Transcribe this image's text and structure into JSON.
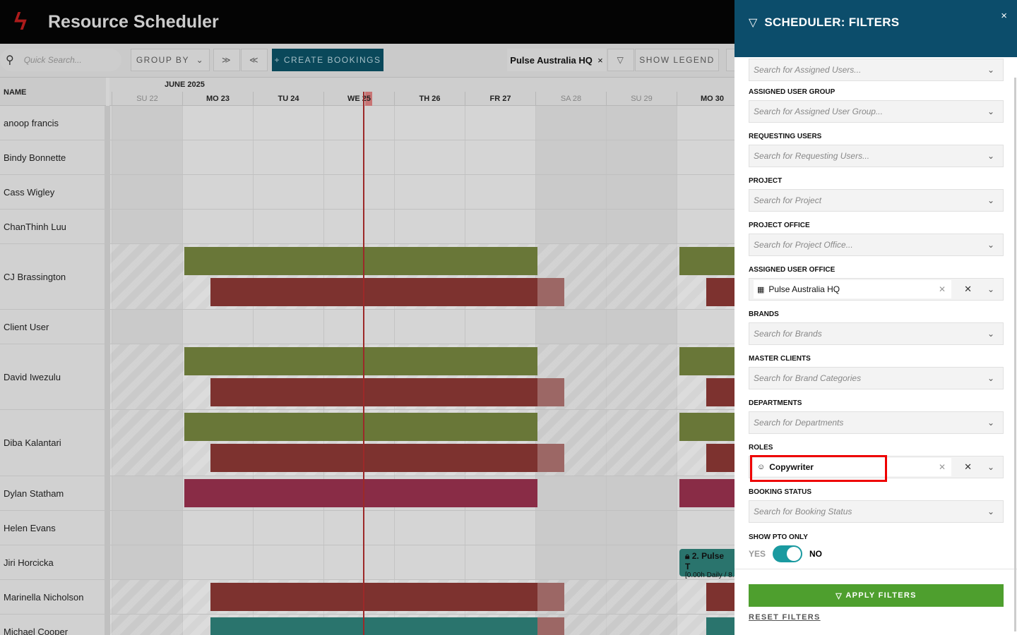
{
  "app": {
    "title": "Resource Scheduler",
    "logo_icon": "lightning-bolt-logo"
  },
  "toolbar": {
    "search_placeholder": "Quick Search...",
    "group_by": "GROUP BY",
    "expand_all": "⌄⌄",
    "collapse_all": "⌃⌃",
    "create_bookings": "+ CREATE BOOKINGS",
    "office_chip": "Pulse Australia HQ",
    "chip_close": "×",
    "filter_icon": "▽",
    "show_legend": "SHOW LEGEND"
  },
  "grid": {
    "name_header": "NAME",
    "month": "JUNE 2025",
    "today_day": "WE 25",
    "days": [
      {
        "label": "SU 22",
        "weekend": true
      },
      {
        "label": "MO 23",
        "weekend": false
      },
      {
        "label": "TU 24",
        "weekend": false
      },
      {
        "label": "WE 25",
        "weekend": false
      },
      {
        "label": "TH 26",
        "weekend": false
      },
      {
        "label": "FR 27",
        "weekend": false
      },
      {
        "label": "SA 28",
        "weekend": true
      },
      {
        "label": "SU 29",
        "weekend": true
      },
      {
        "label": "MO 30",
        "weekend": false
      }
    ]
  },
  "rows": [
    {
      "name": "anoop francis"
    },
    {
      "name": "Bindy Bonnette"
    },
    {
      "name": "Cass Wigley"
    },
    {
      "name": "ChanThinh Luu"
    },
    {
      "name": "CJ Brassington"
    },
    {
      "name": "Client User"
    },
    {
      "name": "David Iwezulu"
    },
    {
      "name": "Diba Kalantari"
    },
    {
      "name": "Dylan Statham"
    },
    {
      "name": "Helen Evans"
    },
    {
      "name": "Jiri Horcicka"
    },
    {
      "name": "Marinella Nicholson"
    },
    {
      "name": "Michael Cooper"
    }
  ],
  "pto_booking": {
    "title": "2. Pulse T",
    "subtitle": "[0.00h Daily / 8."
  },
  "colors": {
    "green": "#6c7a3a",
    "red": "#803330",
    "pink": "#8c2d48",
    "teal": "#2b7770",
    "header": "#0c4d6b",
    "apply": "#4e9f2e"
  },
  "panel": {
    "title": "SCHEDULER: FILTERS",
    "close": "×",
    "fields": [
      {
        "label": "",
        "placeholder": "Search for Assigned Users..."
      },
      {
        "label": "ASSIGNED USER GROUP",
        "placeholder": "Search for Assigned User Group..."
      },
      {
        "label": "REQUESTING USERS",
        "placeholder": "Search for Requesting Users..."
      },
      {
        "label": "PROJECT",
        "placeholder": "Search for Project"
      },
      {
        "label": "PROJECT OFFICE",
        "placeholder": "Search for Project Office..."
      },
      {
        "label": "ASSIGNED USER OFFICE",
        "value": "Pulse Australia HQ",
        "icon": "building-icon"
      },
      {
        "label": "BRANDS",
        "placeholder": "Search for Brands"
      },
      {
        "label": "MASTER CLIENTS",
        "placeholder": "Search for Brand Categories"
      },
      {
        "label": "DEPARTMENTS",
        "placeholder": "Search for Departments"
      },
      {
        "label": "ROLES",
        "value": "Copywriter",
        "icon": "user-circle-icon"
      },
      {
        "label": "BOOKING STATUS",
        "placeholder": "Search for Booking Status"
      }
    ],
    "pto": {
      "label": "SHOW PTO ONLY",
      "yes": "YES",
      "no": "NO",
      "value": "NO"
    },
    "apply": "APPLY FILTERS",
    "reset": "RESET FILTERS"
  }
}
